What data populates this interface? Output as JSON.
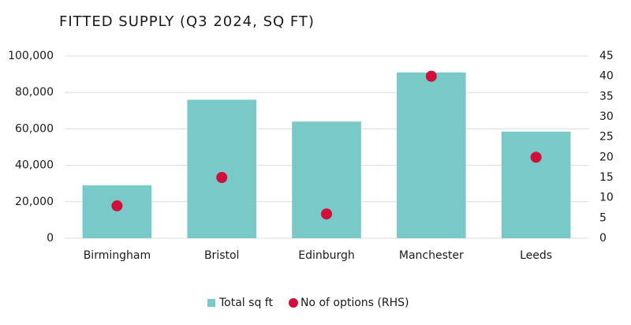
{
  "chart_data": {
    "type": "bar",
    "title": "FITTED SUPPLY (Q3 2024, SQ FT)",
    "categories": [
      "Birmingham",
      "Bristol",
      "Edinburgh",
      "Manchester",
      "Leeds"
    ],
    "series": [
      {
        "name": "Total sq ft",
        "type": "bar",
        "color": "#7ac9c9",
        "values": [
          29000,
          76000,
          64000,
          91000,
          58500
        ]
      },
      {
        "name": "No of options (RHS)",
        "type": "scatter",
        "axis": "y2",
        "color": "#d0103a",
        "values": [
          8,
          15,
          6,
          40,
          20
        ]
      }
    ],
    "ylim": [
      0,
      100000
    ],
    "yticks": [
      0,
      {
        "value": 20000,
        "label": "20,000"
      },
      {
        "value": 40000,
        "label": "40,000"
      },
      {
        "value": 60000,
        "label": "60,000"
      },
      {
        "value": 80000,
        "label": "80,000"
      },
      {
        "value": 100000,
        "label": "100,000"
      }
    ],
    "y2lim": [
      0,
      45
    ],
    "y2ticks": [
      0,
      5,
      10,
      15,
      20,
      25,
      30,
      35,
      40,
      45
    ],
    "grid": true,
    "legend": "bottom"
  }
}
